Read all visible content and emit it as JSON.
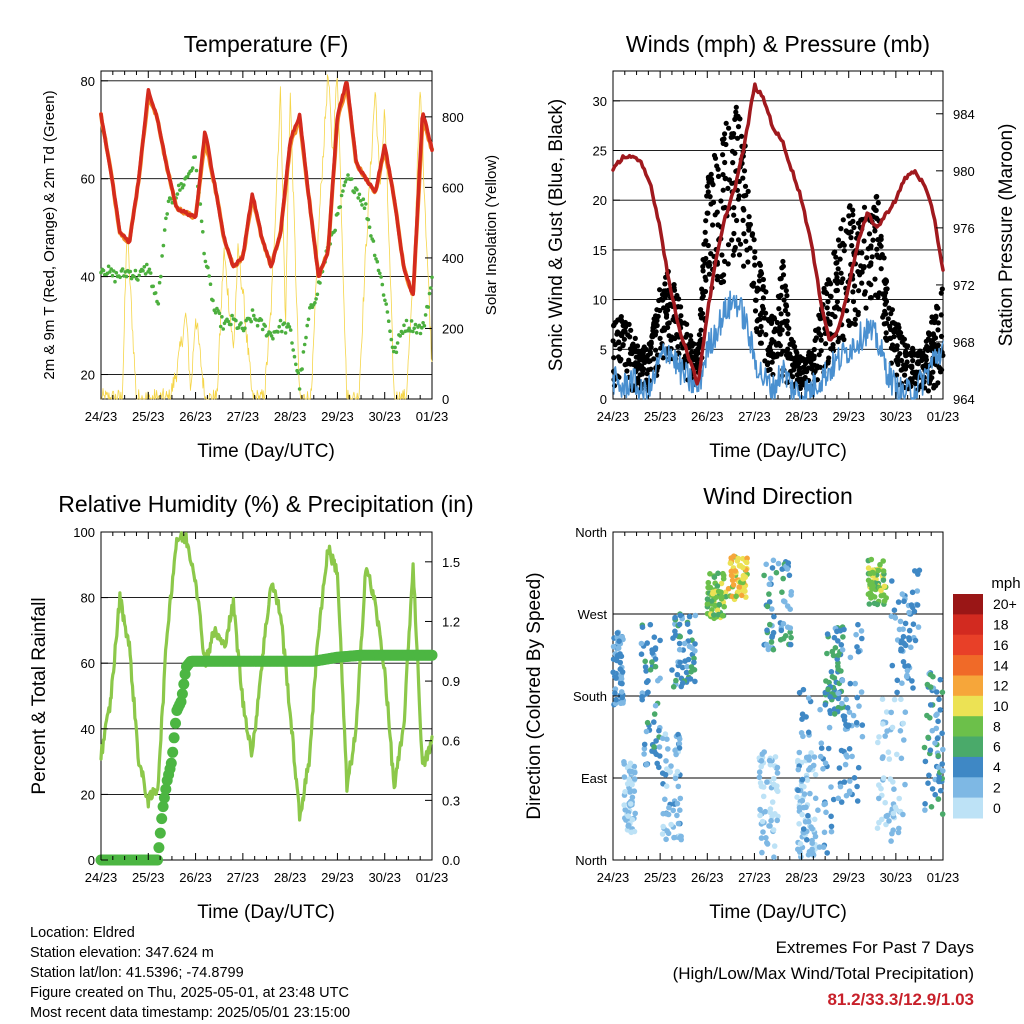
{
  "station": {
    "location_line": "Location: Eldred",
    "elevation_line": "Station elevation: 347.624 m",
    "latlon_line": "Station lat/lon: 41.5396; -74.8799",
    "created_line": "Figure created on Thu, 2025-05-01, at 23:48 UTC",
    "recent_line": "Most recent data timestamp: 2025/05/01 23:15:00"
  },
  "extremes": {
    "title": "Extremes For Past 7 Days",
    "subtitle": "(High/Low/Max Wind/Total Precipitation)",
    "values": "81.2/33.3/12.9/1.03"
  },
  "colors": {
    "temp_2m": "#d42a1e",
    "temp_9m": "#f08a24",
    "dewpoint": "#4caf3e",
    "insolation": "#f5d548",
    "wind_sustained": "#4a90d0",
    "gust": "#000000",
    "pressure": "#a0191e",
    "rh": "#8cc84a",
    "precip": "#4cb642"
  },
  "speed_legend": {
    "title": "mph",
    "labels": [
      "20+",
      "18",
      "16",
      "14",
      "12",
      "10",
      "8",
      "6",
      "4",
      "2",
      "0"
    ],
    "colors": [
      "#9a1616",
      "#d22a20",
      "#e84028",
      "#f06a28",
      "#f6a63a",
      "#ece254",
      "#6cc04a",
      "#4aaa6a",
      "#3f88c5",
      "#7eb8e4",
      "#bde2f6"
    ]
  },
  "chart_data": [
    {
      "type": "line",
      "title": "Temperature (F)",
      "xlabel": "Time (Day/UTC)",
      "ylabel": "2m & 9m T (Red, Orange) & 2m Td (Green)",
      "y2label": "Solar Insolation (Yellow)",
      "x_ticks": [
        "24/23",
        "25/23",
        "26/23",
        "27/23",
        "28/23",
        "29/23",
        "30/23",
        "01/23"
      ],
      "xlim": [
        0,
        7
      ],
      "ylim": [
        15,
        82
      ],
      "y_ticks": [
        20,
        40,
        60,
        80
      ],
      "y2lim": [
        0,
        930
      ],
      "y2_ticks": [
        0,
        200,
        400,
        600,
        800
      ],
      "grid": "horizontal",
      "series": [
        {
          "x": [
            0,
            0.2,
            0.4,
            0.6,
            0.8,
            1.0,
            1.2,
            1.4,
            1.6,
            1.8,
            2.0,
            2.2,
            2.4,
            2.6,
            2.8,
            3.0,
            3.2,
            3.4,
            3.6,
            3.8,
            4.0,
            4.2,
            4.4,
            4.6,
            4.8,
            5.0,
            5.2,
            5.4,
            5.6,
            5.8,
            6.0,
            6.2,
            6.4,
            6.6,
            6.8,
            7.0
          ],
          "y": [
            73,
            62,
            49,
            47,
            60,
            78,
            72,
            62,
            54,
            53,
            52,
            70,
            59,
            48,
            42,
            44,
            57,
            48,
            42,
            49,
            68,
            73,
            56,
            40,
            45,
            73,
            80,
            63,
            60,
            57,
            67,
            56,
            42,
            36,
            74,
            66
          ]
        },
        {
          "x": [
            0,
            0.2,
            0.4,
            0.6,
            0.8,
            1.0,
            1.2,
            1.4,
            1.6,
            1.8,
            2.0,
            2.2,
            2.4,
            2.6,
            2.8,
            3.0,
            3.2,
            3.4,
            3.6,
            3.8,
            4.0,
            4.2,
            4.4,
            4.6,
            4.8,
            5.0,
            5.2,
            5.4,
            5.6,
            5.8,
            6.0,
            6.2,
            6.4,
            6.6,
            6.8,
            7.0
          ],
          "y": [
            73,
            62,
            49,
            47,
            60,
            77,
            72,
            62,
            54,
            53,
            52,
            68,
            59,
            48,
            42,
            44,
            56,
            48,
            42,
            49,
            67,
            72,
            56,
            40,
            45,
            72,
            79,
            63,
            60,
            57,
            66,
            56,
            42,
            36,
            72,
            66
          ]
        },
        {
          "x": [
            0,
            0.3,
            0.6,
            0.8,
            1.0,
            1.2,
            1.4,
            1.6,
            1.8,
            2.0,
            2.2,
            2.4,
            2.6,
            2.8,
            3.0,
            3.2,
            3.4,
            3.6,
            3.8,
            4.0,
            4.2,
            4.4,
            4.6,
            4.8,
            5.0,
            5.2,
            5.4,
            5.6,
            5.8,
            6.0,
            6.2,
            6.4,
            6.6,
            6.8,
            7.0
          ],
          "y": [
            42,
            40,
            41,
            40,
            42,
            34,
            54,
            57,
            60,
            64,
            44,
            33,
            30,
            31,
            29,
            32,
            30,
            28,
            30,
            29,
            18,
            32,
            38,
            46,
            52,
            60,
            58,
            54,
            45,
            36,
            24,
            30,
            30,
            29,
            39
          ]
        },
        {
          "x": [
            0,
            0.45,
            0.55,
            0.75,
            1.45,
            1.6,
            1.8,
            1.9,
            2.0,
            2.2,
            2.45,
            2.6,
            2.8,
            2.9,
            3.0,
            3.2,
            3.45,
            3.6,
            3.8,
            3.9,
            4.0,
            4.2,
            4.45,
            4.6,
            4.8,
            4.9,
            5.0,
            5.2,
            5.45,
            5.6,
            5.8,
            5.9,
            6.0,
            6.2,
            6.45,
            6.6,
            6.75,
            6.9,
            7.0
          ],
          "y": [
            0,
            0,
            480,
            0,
            0,
            80,
            240,
            20,
            240,
            0,
            0,
            420,
            140,
            420,
            300,
            0,
            0,
            260,
            880,
            200,
            880,
            0,
            0,
            480,
            920,
            700,
            930,
            0,
            0,
            420,
            880,
            600,
            820,
            0,
            0,
            320,
            880,
            400,
            100
          ]
        }
      ],
      "series_names": []
    },
    {
      "type": "scatter",
      "title": "Winds (mph) & Pressure (mb)",
      "xlabel": "Time (Day/UTC)",
      "ylabel": "Sonic Wind & Gust (Blue, Black)",
      "y2label": "Station Pressure (Maroon)",
      "x_ticks": [
        "24/23",
        "25/23",
        "26/23",
        "27/23",
        "28/23",
        "29/23",
        "30/23",
        "01/23"
      ],
      "xlim": [
        0,
        7
      ],
      "ylim": [
        0,
        33
      ],
      "y_ticks": [
        0,
        5,
        10,
        15,
        20,
        25,
        30
      ],
      "y2lim": [
        964,
        987
      ],
      "y2_ticks": [
        964,
        968,
        972,
        976,
        980,
        984
      ],
      "grid": "horizontal",
      "gust_envelope": {
        "x": [
          0,
          0.3,
          0.6,
          0.8,
          1.0,
          1.2,
          1.4,
          1.6,
          1.8,
          2.0,
          2.2,
          2.4,
          2.6,
          2.8,
          3.0,
          3.2,
          3.4,
          3.6,
          3.8,
          4.0,
          4.2,
          4.4,
          4.6,
          4.8,
          5.0,
          5.2,
          5.4,
          5.6,
          5.8,
          6.0,
          6.2,
          6.4,
          6.6,
          6.8,
          7.0
        ],
        "low": [
          1,
          1,
          0.5,
          1,
          2,
          3,
          2,
          1,
          1,
          8,
          10,
          12,
          14,
          12,
          6,
          3,
          1,
          2,
          1,
          1,
          1,
          2,
          3,
          5,
          6,
          8,
          9,
          10,
          5,
          1,
          0.5,
          1,
          0.5,
          1,
          2
        ],
        "high": [
          10,
          8,
          5,
          6,
          12,
          13,
          10,
          7,
          5,
          22,
          26,
          29,
          30,
          27,
          16,
          12,
          8,
          14,
          6,
          4,
          5,
          10,
          13,
          17,
          20,
          18,
          20,
          21,
          12,
          8,
          6,
          5,
          5,
          9,
          13
        ]
      },
      "series": [
        {
          "name": "Sonic Wind",
          "x": [
            0,
            0.2,
            0.4,
            0.6,
            0.8,
            1.0,
            1.2,
            1.4,
            1.6,
            1.8,
            2.0,
            2.2,
            2.4,
            2.6,
            2.8,
            3.0,
            3.2,
            3.4,
            3.6,
            3.8,
            4.0,
            4.2,
            4.4,
            4.6,
            4.8,
            5.0,
            5.2,
            5.4,
            5.6,
            5.8,
            6.0,
            6.2,
            6.4,
            6.6,
            6.8,
            7.0
          ],
          "y": [
            2,
            1,
            2,
            0.5,
            1,
            4,
            5,
            3,
            2,
            1,
            5,
            7,
            9,
            10,
            8,
            4,
            2,
            1,
            3,
            1,
            0.5,
            1,
            2,
            3,
            4,
            5,
            6,
            7,
            6,
            3,
            1,
            0.5,
            1,
            2,
            4,
            5
          ]
        },
        {
          "name": "Station Pressure",
          "x": [
            0,
            0.2,
            0.4,
            0.6,
            0.8,
            1.0,
            1.2,
            1.4,
            1.6,
            1.8,
            2.0,
            2.2,
            2.4,
            2.6,
            2.8,
            3.0,
            3.2,
            3.4,
            3.6,
            3.8,
            4.0,
            4.2,
            4.4,
            4.6,
            4.8,
            5.0,
            5.2,
            5.4,
            5.6,
            5.8,
            6.0,
            6.2,
            6.4,
            6.6,
            6.8,
            7.0
          ],
          "y": [
            980,
            981,
            981,
            980.5,
            979,
            976,
            972,
            969,
            967,
            965,
            970,
            974,
            977,
            979,
            982,
            986,
            985,
            983,
            982,
            980,
            978,
            975,
            971,
            968,
            969,
            972,
            975,
            977,
            976,
            977,
            978,
            979.5,
            980,
            979,
            977,
            973
          ]
        }
      ]
    },
    {
      "type": "line",
      "title": "Relative Humidity (%) & Precipitation (in)",
      "xlabel": "Time (Day/UTC)",
      "ylabel": "Percent & Total Rainfall",
      "x_ticks": [
        "24/23",
        "25/23",
        "26/23",
        "27/23",
        "28/23",
        "29/23",
        "30/23",
        "01/23"
      ],
      "xlim": [
        0,
        7
      ],
      "ylim": [
        0,
        100
      ],
      "y_ticks": [
        0,
        20,
        40,
        60,
        80,
        100
      ],
      "y2lim": [
        0,
        1.65
      ],
      "y2_ticks": [
        "0.0",
        "0.3",
        "0.6",
        "0.9",
        "1.2",
        "1.5"
      ],
      "grid": "horizontal",
      "series": [
        {
          "name": "Relative Humidity",
          "x": [
            0,
            0.2,
            0.4,
            0.6,
            0.8,
            1.0,
            1.2,
            1.4,
            1.6,
            1.8,
            2.0,
            2.2,
            2.4,
            2.6,
            2.8,
            3.0,
            3.2,
            3.4,
            3.6,
            3.8,
            4.0,
            4.2,
            4.4,
            4.6,
            4.8,
            5.0,
            5.2,
            5.4,
            5.6,
            5.8,
            6.0,
            6.2,
            6.4,
            6.6,
            6.8,
            7.0
          ],
          "y": [
            32,
            48,
            80,
            65,
            30,
            18,
            22,
            70,
            98,
            98,
            86,
            60,
            70,
            65,
            78,
            48,
            32,
            60,
            85,
            75,
            45,
            13,
            30,
            70,
            95,
            88,
            22,
            40,
            90,
            78,
            58,
            22,
            40,
            90,
            28,
            36
          ]
        },
        {
          "name": "Total Precipitation",
          "x": [
            0,
            0.7,
            1.2,
            1.3,
            1.4,
            1.5,
            1.6,
            1.7,
            1.8,
            1.9,
            2.0,
            2.5,
            3.0,
            3.5,
            4.0,
            4.5,
            5.0,
            5.5,
            6.0,
            6.5,
            7.0
          ],
          "y": [
            0,
            0,
            0,
            0.25,
            0.4,
            0.5,
            0.75,
            0.8,
            0.97,
            1.0,
            1.0,
            1.0,
            1.0,
            1.0,
            1.0,
            1.0,
            1.02,
            1.03,
            1.03,
            1.03,
            1.03
          ]
        }
      ]
    },
    {
      "type": "scatter",
      "title": "Wind Direction",
      "xlabel": "Time (Day/UTC)",
      "ylabel": "Direction (Colored By Speed)",
      "x_ticks": [
        "24/23",
        "25/23",
        "26/23",
        "27/23",
        "28/23",
        "29/23",
        "30/23",
        "01/23"
      ],
      "xlim": [
        0,
        7
      ],
      "ylim": [
        0,
        360
      ],
      "y_ticks": [
        "North",
        "East",
        "South",
        "West",
        "North"
      ],
      "grid": "horizontal",
      "clusters": [
        {
          "x": 0.1,
          "dir": 210,
          "spread_x": 0.12,
          "spread_dir": 40,
          "speed": 3
        },
        {
          "x": 0.35,
          "dir": 70,
          "spread_x": 0.12,
          "spread_dir": 40,
          "speed": 1
        },
        {
          "x": 0.8,
          "dir": 180,
          "spread_x": 0.2,
          "spread_dir": 80,
          "speed": 4
        },
        {
          "x": 1.25,
          "dir": 80,
          "spread_x": 0.2,
          "spread_dir": 60,
          "speed": 2
        },
        {
          "x": 1.5,
          "dir": 230,
          "spread_x": 0.25,
          "spread_dir": 40,
          "speed": 4
        },
        {
          "x": 2.2,
          "dir": 290,
          "spread_x": 0.2,
          "spread_dir": 25,
          "speed": 8
        },
        {
          "x": 2.65,
          "dir": 310,
          "spread_x": 0.2,
          "spread_dir": 25,
          "speed": 10
        },
        {
          "x": 3.5,
          "dir": 280,
          "spread_x": 0.3,
          "spread_dir": 50,
          "speed": 4
        },
        {
          "x": 3.3,
          "dir": 60,
          "spread_x": 0.2,
          "spread_dir": 60,
          "speed": 1
        },
        {
          "x": 4.1,
          "dir": 60,
          "spread_x": 0.2,
          "spread_dir": 60,
          "speed": 1
        },
        {
          "x": 4.3,
          "dir": 90,
          "spread_x": 0.4,
          "spread_dir": 100,
          "speed": 3
        },
        {
          "x": 4.7,
          "dir": 210,
          "spread_x": 0.2,
          "spread_dir": 50,
          "speed": 5
        },
        {
          "x": 5.6,
          "dir": 305,
          "spread_x": 0.2,
          "spread_dir": 25,
          "speed": 8
        },
        {
          "x": 5.0,
          "dir": 160,
          "spread_x": 0.3,
          "spread_dir": 100,
          "speed": 3
        },
        {
          "x": 5.9,
          "dir": 100,
          "spread_x": 0.3,
          "spread_dir": 80,
          "speed": 1
        },
        {
          "x": 6.2,
          "dir": 250,
          "spread_x": 0.3,
          "spread_dir": 70,
          "speed": 3
        },
        {
          "x": 6.8,
          "dir": 130,
          "spread_x": 0.2,
          "spread_dir": 80,
          "speed": 4
        }
      ]
    }
  ]
}
